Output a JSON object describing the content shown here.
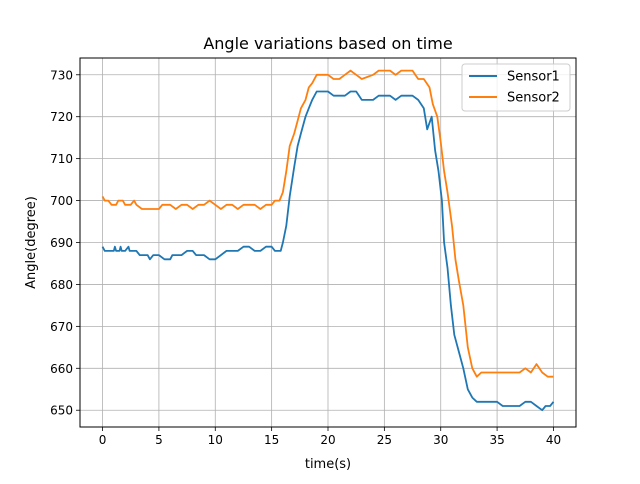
{
  "chart_data": {
    "type": "line",
    "title": "Angle variations based on time",
    "xlabel": "time(s)",
    "ylabel": "Angle(degree)",
    "xlim": [
      -2,
      42
    ],
    "ylim": [
      646,
      734
    ],
    "xticks": [
      0,
      5,
      10,
      15,
      20,
      25,
      30,
      35,
      40
    ],
    "yticks": [
      650,
      660,
      670,
      680,
      690,
      700,
      710,
      720,
      730
    ],
    "grid": true,
    "legend_position": "top-right",
    "series": [
      {
        "name": "Sensor1",
        "color": "#1f77b4",
        "points": [
          [
            0,
            689
          ],
          [
            0.2,
            688
          ],
          [
            1,
            688
          ],
          [
            1.1,
            689
          ],
          [
            1.2,
            688
          ],
          [
            1.5,
            688
          ],
          [
            1.6,
            689
          ],
          [
            1.7,
            688
          ],
          [
            2,
            688
          ],
          [
            2.3,
            689
          ],
          [
            2.4,
            688
          ],
          [
            3,
            688
          ],
          [
            3.3,
            687
          ],
          [
            4,
            687
          ],
          [
            4.2,
            686
          ],
          [
            4.5,
            687
          ],
          [
            5,
            687
          ],
          [
            5.5,
            686
          ],
          [
            6,
            686
          ],
          [
            6.2,
            687
          ],
          [
            7,
            687
          ],
          [
            7.5,
            688
          ],
          [
            8,
            688
          ],
          [
            8.3,
            687
          ],
          [
            9,
            687
          ],
          [
            9.5,
            686
          ],
          [
            10,
            686
          ],
          [
            10.5,
            687
          ],
          [
            11,
            688
          ],
          [
            11.5,
            688
          ],
          [
            12,
            688
          ],
          [
            12.5,
            689
          ],
          [
            13,
            689
          ],
          [
            13.5,
            688
          ],
          [
            14,
            688
          ],
          [
            14.5,
            689
          ],
          [
            15,
            689
          ],
          [
            15.3,
            688
          ],
          [
            15.8,
            688
          ],
          [
            16,
            690
          ],
          [
            16.3,
            694
          ],
          [
            16.6,
            701
          ],
          [
            17,
            708
          ],
          [
            17.3,
            713
          ],
          [
            17.6,
            716
          ],
          [
            18,
            720
          ],
          [
            18.3,
            722
          ],
          [
            18.6,
            724
          ],
          [
            19,
            726
          ],
          [
            20,
            726
          ],
          [
            20.5,
            725
          ],
          [
            21.5,
            725
          ],
          [
            22,
            726
          ],
          [
            22.5,
            726
          ],
          [
            23,
            724
          ],
          [
            24,
            724
          ],
          [
            24.5,
            725
          ],
          [
            25.5,
            725
          ],
          [
            26,
            724
          ],
          [
            26.5,
            725
          ],
          [
            27.5,
            725
          ],
          [
            28,
            724
          ],
          [
            28.5,
            722
          ],
          [
            28.8,
            717
          ],
          [
            29.2,
            720
          ],
          [
            29.5,
            712
          ],
          [
            29.8,
            707
          ],
          [
            30.1,
            700
          ],
          [
            30.3,
            690
          ],
          [
            30.6,
            684
          ],
          [
            30.9,
            675
          ],
          [
            31.2,
            668
          ],
          [
            31.6,
            664
          ],
          [
            32,
            660
          ],
          [
            32.4,
            655
          ],
          [
            32.8,
            653
          ],
          [
            33.2,
            652
          ],
          [
            34,
            652
          ],
          [
            35,
            652
          ],
          [
            35.5,
            651
          ],
          [
            37,
            651
          ],
          [
            37.5,
            652
          ],
          [
            38,
            652
          ],
          [
            38.5,
            651
          ],
          [
            39,
            650
          ],
          [
            39.3,
            651
          ],
          [
            39.7,
            651
          ],
          [
            40,
            652
          ]
        ]
      },
      {
        "name": "Sensor2",
        "color": "#ff7f0e",
        "points": [
          [
            0,
            701
          ],
          [
            0.2,
            700
          ],
          [
            0.5,
            700
          ],
          [
            0.8,
            699
          ],
          [
            1.2,
            699
          ],
          [
            1.4,
            700
          ],
          [
            1.8,
            700
          ],
          [
            2,
            699
          ],
          [
            2.5,
            699
          ],
          [
            2.8,
            700
          ],
          [
            3,
            699
          ],
          [
            3.5,
            698
          ],
          [
            4,
            698
          ],
          [
            4.5,
            698
          ],
          [
            5,
            698
          ],
          [
            5.3,
            699
          ],
          [
            6,
            699
          ],
          [
            6.5,
            698
          ],
          [
            7,
            699
          ],
          [
            7.5,
            699
          ],
          [
            8,
            698
          ],
          [
            8.5,
            699
          ],
          [
            9,
            699
          ],
          [
            9.5,
            700
          ],
          [
            10,
            699
          ],
          [
            10.5,
            698
          ],
          [
            11,
            699
          ],
          [
            11.5,
            699
          ],
          [
            12,
            698
          ],
          [
            12.5,
            699
          ],
          [
            13,
            699
          ],
          [
            13.5,
            699
          ],
          [
            14,
            698
          ],
          [
            14.5,
            699
          ],
          [
            15,
            699
          ],
          [
            15.3,
            700
          ],
          [
            15.7,
            700
          ],
          [
            16,
            702
          ],
          [
            16.3,
            707
          ],
          [
            16.6,
            713
          ],
          [
            17,
            716
          ],
          [
            17.3,
            719
          ],
          [
            17.6,
            722
          ],
          [
            18,
            724
          ],
          [
            18.3,
            727
          ],
          [
            18.6,
            728
          ],
          [
            19,
            730
          ],
          [
            20,
            730
          ],
          [
            20.5,
            729
          ],
          [
            21,
            729
          ],
          [
            21.5,
            730
          ],
          [
            22,
            731
          ],
          [
            22.5,
            730
          ],
          [
            23,
            729
          ],
          [
            24,
            730
          ],
          [
            24.5,
            731
          ],
          [
            25.5,
            731
          ],
          [
            26,
            730
          ],
          [
            26.5,
            731
          ],
          [
            27.5,
            731
          ],
          [
            28,
            729
          ],
          [
            28.5,
            729
          ],
          [
            29,
            727
          ],
          [
            29.3,
            723
          ],
          [
            29.7,
            720
          ],
          [
            30,
            714
          ],
          [
            30.3,
            707
          ],
          [
            30.6,
            702
          ],
          [
            31,
            694
          ],
          [
            31.3,
            686
          ],
          [
            31.6,
            681
          ],
          [
            32,
            675
          ],
          [
            32.4,
            665
          ],
          [
            32.8,
            660
          ],
          [
            33.2,
            658
          ],
          [
            33.6,
            659
          ],
          [
            34,
            659
          ],
          [
            35,
            659
          ],
          [
            36,
            659
          ],
          [
            37,
            659
          ],
          [
            37.5,
            660
          ],
          [
            38,
            659
          ],
          [
            38.5,
            661
          ],
          [
            39,
            659
          ],
          [
            39.5,
            658
          ],
          [
            40,
            658
          ]
        ]
      }
    ]
  }
}
